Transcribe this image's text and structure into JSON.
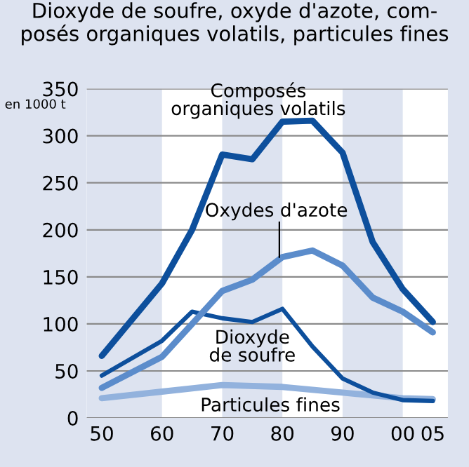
{
  "chart_data": {
    "type": "line",
    "title": "Dioxyde de soufre, oxyde d'azote, com-\nposés organiques volatils, particules fines",
    "ylabel": "en 1000 t",
    "x": [
      1950,
      1960,
      1965,
      1970,
      1975,
      1980,
      1985,
      1990,
      1995,
      2000,
      2005
    ],
    "series": [
      {
        "name": "Composés\norganiques volatils",
        "color": "#0d4f9c",
        "values": [
          66,
          143,
          200,
          280,
          275,
          315,
          316,
          282,
          187,
          137,
          102
        ]
      },
      {
        "name": "Oxydes d'azote",
        "color": "#5b8ccb",
        "values": [
          32,
          65,
          100,
          135,
          147,
          171,
          178,
          162,
          128,
          113,
          91
        ]
      },
      {
        "name": "Dioxyde\nde soufre",
        "color": "#0d4f9c",
        "values": [
          45,
          82,
          113,
          106,
          102,
          116,
          76,
          42,
          27,
          19,
          18
        ]
      },
      {
        "name": "Particules fines",
        "color": "#92b2dd",
        "x": [
          1950,
          1960,
          1970,
          1980,
          1990,
          2000,
          2005
        ],
        "values": [
          21,
          28,
          35,
          33,
          27,
          21,
          20
        ]
      }
    ],
    "xlim": [
      1947.5,
      2007.5
    ],
    "xticks": [
      {
        "value": 1950,
        "label": "50"
      },
      {
        "value": 1960,
        "label": "60"
      },
      {
        "value": 1970,
        "label": "70"
      },
      {
        "value": 1980,
        "label": "80"
      },
      {
        "value": 1990,
        "label": "90"
      },
      {
        "value": 2000,
        "label": "00"
      },
      {
        "value": 2005,
        "label": "05"
      }
    ],
    "ylim": [
      0,
      350
    ],
    "yticks": [
      0,
      50,
      100,
      150,
      200,
      250,
      300,
      350
    ],
    "grid": "y",
    "bands": [
      {
        "axis": "x",
        "from": 1947.5,
        "to": 1960,
        "color": "#dde3f0"
      },
      {
        "axis": "x",
        "from": 1970,
        "to": 1980,
        "color": "#dde3f0"
      },
      {
        "axis": "x",
        "from": 1990,
        "to": 2000,
        "color": "#dde3f0"
      }
    ]
  }
}
